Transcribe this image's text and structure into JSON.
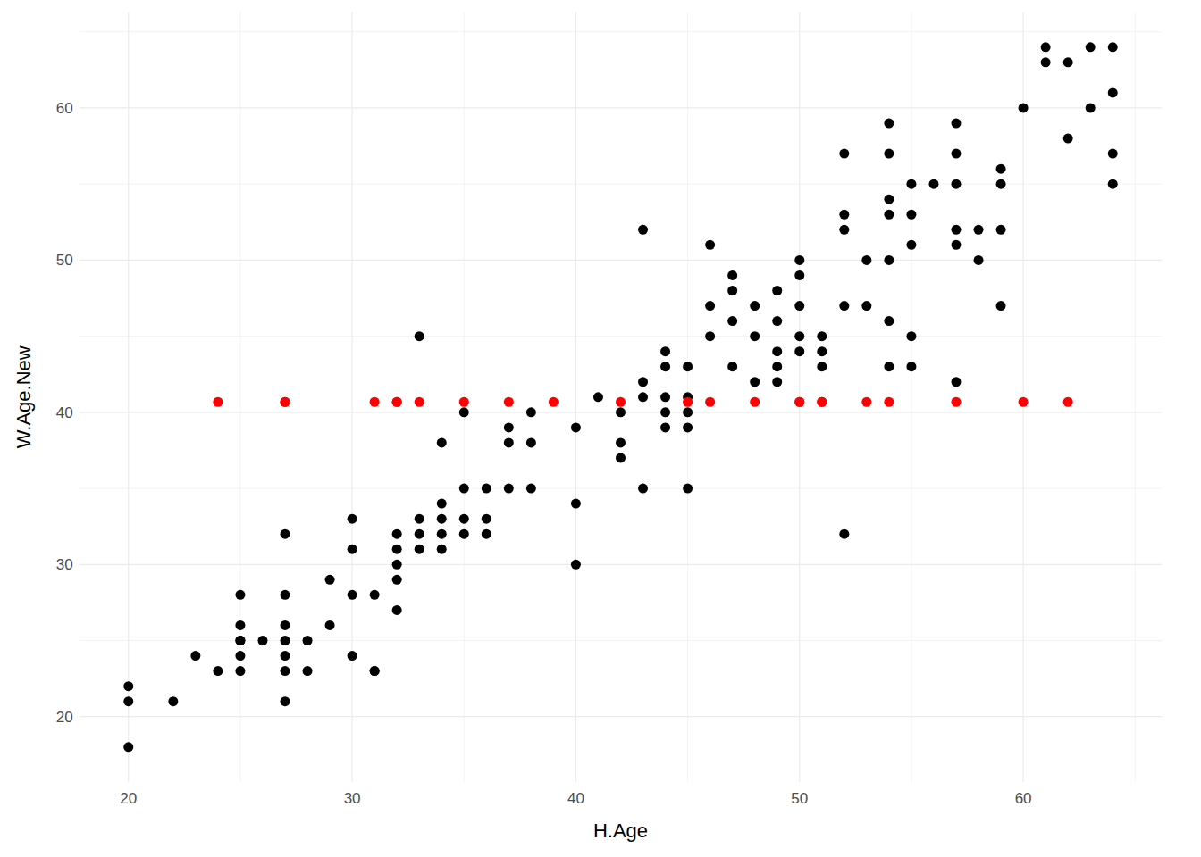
{
  "chart_data": {
    "type": "scatter",
    "x_label": "H.Age",
    "y_label": "W.Age.New",
    "xlim": [
      17.8,
      66.2
    ],
    "ylim": [
      15.7,
      66.3
    ],
    "xticks": [
      20,
      30,
      40,
      50,
      60
    ],
    "yticks": [
      20,
      30,
      40,
      50,
      60
    ],
    "grid": true,
    "series": [
      {
        "color": "#000000",
        "marker": "circle",
        "x": [
          20,
          20,
          20,
          22,
          23,
          24,
          25,
          25,
          25,
          25,
          25,
          25,
          26,
          27,
          27,
          27,
          27,
          27,
          27,
          27,
          28,
          28,
          29,
          29,
          30,
          30,
          30,
          30,
          31,
          31,
          31,
          32,
          32,
          32,
          32,
          32,
          33,
          33,
          33,
          33,
          34,
          34,
          34,
          34,
          34,
          35,
          35,
          35,
          35,
          36,
          36,
          36,
          37,
          37,
          37,
          38,
          38,
          38,
          40,
          40,
          40,
          41,
          42,
          42,
          42,
          43,
          43,
          43,
          43,
          44,
          44,
          44,
          44,
          44,
          45,
          45,
          45,
          45,
          45,
          46,
          46,
          46,
          47,
          47,
          47,
          47,
          48,
          48,
          48,
          49,
          49,
          49,
          49,
          49,
          50,
          50,
          50,
          50,
          50,
          51,
          51,
          51,
          52,
          52,
          52,
          52,
          52,
          53,
          53,
          54,
          54,
          54,
          54,
          54,
          54,
          54,
          55,
          55,
          55,
          55,
          55,
          56,
          57,
          57,
          57,
          57,
          57,
          57,
          58,
          58,
          59,
          59,
          59,
          59,
          60,
          61,
          61,
          62,
          62,
          63,
          63,
          64,
          64,
          64,
          64
        ],
        "values": [
          22,
          21,
          18,
          21,
          24,
          23,
          28,
          26,
          25,
          24,
          23,
          25,
          25,
          32,
          28,
          26,
          25,
          24,
          23,
          21,
          25,
          23,
          29,
          26,
          33,
          31,
          28,
          24,
          28,
          23,
          23,
          32,
          31,
          30,
          29,
          27,
          45,
          33,
          32,
          31,
          38,
          34,
          33,
          32,
          31,
          40,
          35,
          33,
          32,
          35,
          33,
          32,
          39,
          38,
          35,
          40,
          38,
          35,
          39,
          34,
          30,
          41,
          40,
          38,
          37,
          52,
          42,
          41,
          35,
          44,
          43,
          41,
          40,
          39,
          43,
          41,
          40,
          39,
          35,
          51,
          47,
          45,
          49,
          48,
          46,
          43,
          47,
          45,
          42,
          48,
          46,
          44,
          43,
          42,
          50,
          49,
          47,
          45,
          44,
          45,
          44,
          43,
          57,
          53,
          52,
          47,
          32,
          50,
          47,
          59,
          57,
          54,
          53,
          50,
          46,
          43,
          55,
          53,
          51,
          45,
          43,
          55,
          59,
          57,
          55,
          52,
          51,
          42,
          52,
          50,
          56,
          55,
          52,
          47,
          60,
          64,
          63,
          63,
          58,
          64,
          60,
          64,
          61,
          57,
          55
        ]
      },
      {
        "color": "#ff0000",
        "marker": "circle",
        "x": [
          24,
          27,
          27,
          31,
          32,
          32,
          33,
          35,
          37,
          39,
          42,
          45,
          46,
          48,
          50,
          50,
          51,
          51,
          53,
          54,
          57,
          60,
          62
        ],
        "values": [
          40.68,
          40.68,
          40.68,
          40.68,
          40.68,
          40.68,
          40.68,
          40.68,
          40.68,
          40.68,
          40.68,
          40.68,
          40.68,
          40.68,
          40.68,
          40.68,
          40.68,
          40.68,
          40.68,
          40.68,
          40.68,
          40.68,
          40.68
        ]
      }
    ]
  }
}
